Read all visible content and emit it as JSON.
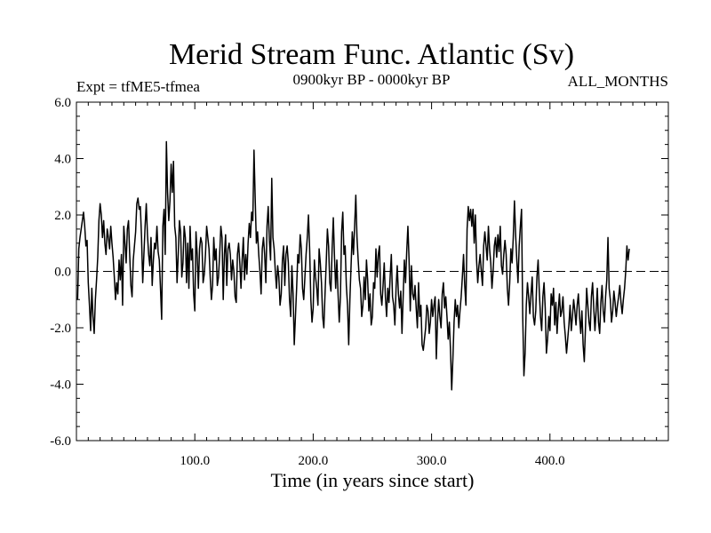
{
  "chart_data": {
    "type": "line",
    "title": "Merid Stream Func. Atlantic (Sv)",
    "subtitle_left": "Expt = tfME5-tfmea",
    "subtitle_center": "0900kyr BP - 0000kyr BP",
    "subtitle_right": "ALL_MONTHS",
    "xlabel": "Time (in years since start)",
    "ylabel": "",
    "xlim": [
      0,
      500
    ],
    "ylim": [
      -6.0,
      6.0
    ],
    "xticks": [
      100,
      200,
      300,
      400
    ],
    "xtick_labels": [
      "100.0",
      "200.0",
      "300.0",
      "400.0"
    ],
    "yticks": [
      -6,
      -4,
      -2,
      0,
      2,
      4,
      6
    ],
    "ytick_labels": [
      "-6.0",
      "-4.0",
      "-2.0",
      "0.0",
      "2.0",
      "4.0",
      "6.0"
    ],
    "reference_line_y": 0.0,
    "series": [
      {
        "name": "Merid Stream Func. Atlantic",
        "color": "#000000",
        "x_start": 1,
        "x_step": 1,
        "values": [
          -1.0,
          0.8,
          1.2,
          1.5,
          1.8,
          2.1,
          1.6,
          0.9,
          1.1,
          -0.4,
          -1.2,
          -2.1,
          -0.6,
          -1.6,
          -2.2,
          -1.0,
          -0.3,
          0.5,
          1.8,
          2.4,
          2.0,
          1.2,
          1.8,
          1.0,
          0.6,
          1.5,
          1.2,
          0.8,
          1.6,
          1.0,
          0.5,
          -0.2,
          -1.0,
          -0.4,
          -0.8,
          0.4,
          -0.3,
          0.6,
          -1.2,
          1.6,
          1.0,
          0.3,
          1.5,
          1.8,
          0.6,
          -0.5,
          -0.9,
          0.4,
          0.9,
          1.4,
          2.4,
          2.6,
          2.2,
          2.3,
          1.2,
          -0.4,
          0.6,
          1.6,
          2.4,
          1.3,
          0.6,
          0.2,
          1.2,
          -0.5,
          0.4,
          1.0,
          0.8,
          1.6,
          0.7,
          0.4,
          -0.6,
          -1.7,
          1.6,
          2.2,
          0.6,
          4.6,
          2.8,
          1.8,
          2.5,
          3.8,
          2.8,
          3.9,
          1.6,
          1.2,
          -0.4,
          0.6,
          1.8,
          1.4,
          -0.2,
          0.3,
          1.6,
          1.2,
          -0.4,
          1.0,
          -0.6,
          1.6,
          0.4,
          0.8,
          -0.8,
          -1.4,
          1.4,
          0.6,
          -0.6,
          0.8,
          1.2,
          1.0,
          -0.4,
          -0.1,
          0.6,
          1.6,
          1.2,
          0.8,
          -0.2,
          -1.0,
          -0.5,
          1.2,
          0.4,
          0.8,
          -0.5,
          -0.2,
          0.6,
          1.6,
          1.2,
          -1.0,
          0.6,
          1.3,
          -0.5,
          0.8,
          1.0,
          0.6,
          -0.3,
          0.4,
          0.0,
          -0.9,
          -1.1,
          0.6,
          1.0,
          0.3,
          -0.6,
          0.4,
          1.2,
          -0.3,
          0.6,
          -0.1,
          1.0,
          1.7,
          1.2,
          2.1,
          1.8,
          4.3,
          2.6,
          1.0,
          1.4,
          0.6,
          0.0,
          -0.8,
          0.8,
          1.2,
          0.6,
          -0.4,
          1.6,
          2.3,
          1.1,
          0.4,
          3.3,
          1.2,
          0.8,
          0.0,
          -0.6,
          0.2,
          -0.2,
          -1.2,
          -0.8,
          0.4,
          0.9,
          -0.5,
          0.6,
          0.9,
          0.3,
          -1.0,
          -1.6,
          0.2,
          -0.8,
          -2.6,
          -1.6,
          -0.6,
          0.6,
          0.3,
          1.3,
          0.8,
          -0.6,
          -1.0,
          -0.2,
          0.6,
          1.2,
          2.0,
          0.8,
          -1.0,
          -1.8,
          -1.3,
          0.4,
          -0.2,
          -0.6,
          -1.2,
          0.8,
          0.3,
          -0.4,
          -1.6,
          -2.0,
          -0.8,
          0.3,
          1.5,
          0.9,
          -0.4,
          -0.7,
          0.8,
          1.9,
          0.5,
          -0.6,
          0.4,
          -0.8,
          -1.8,
          -0.9,
          1.4,
          2.1,
          0.6,
          0.9,
          -0.5,
          -1.2,
          -2.6,
          -1.0,
          0.2,
          1.4,
          0.6,
          1.6,
          2.7,
          1.2,
          0.4,
          -0.3,
          -0.6,
          -1.6,
          -1.2,
          -0.2,
          -1.0,
          0.4,
          -0.3,
          -1.4,
          -0.8,
          -1.9,
          -1.6,
          -0.4,
          -0.6,
          0.8,
          -0.2,
          0.6,
          0.9,
          -0.8,
          -1.2,
          -0.5,
          0.3,
          -0.9,
          -1.6,
          -0.6,
          -1.1,
          -0.2,
          0.6,
          -0.9,
          -1.2,
          -1.9,
          -0.6,
          0.2,
          -0.8,
          -1.3,
          -0.7,
          -2.2,
          -0.9,
          0.4,
          -0.4,
          0.7,
          1.6,
          0.4,
          -1.4,
          0.2,
          -0.8,
          -1.0,
          -0.5,
          -1.3,
          -2.0,
          -0.4,
          -1.6,
          -1.2,
          -2.6,
          -2.8,
          -2.4,
          -2.0,
          -1.2,
          -1.4,
          -2.2,
          -1.8,
          -1.0,
          -1.6,
          -1.2,
          -0.9,
          -3.1,
          -1.8,
          -1.0,
          -1.6,
          -2.0,
          -0.8,
          -0.4,
          -1.3,
          -0.9,
          -1.6,
          -2.4,
          -1.8,
          -2.8,
          -4.2,
          -3.1,
          -1.8,
          -1.0,
          -1.6,
          -1.2,
          -2.0,
          -1.4,
          -0.9,
          -0.2,
          0.6,
          -0.5,
          -1.2,
          1.5,
          2.3,
          1.8,
          2.2,
          1.6,
          2.2,
          1.0,
          2.0,
          0.4,
          -0.4,
          0.2,
          0.6,
          0.0,
          -0.5,
          0.9,
          1.4,
          0.9,
          0.4,
          1.6,
          0.8,
          0.3,
          -0.6,
          0.0,
          0.9,
          1.2,
          0.5,
          1.3,
          0.7,
          1.6,
          0.2,
          -0.1,
          0.6,
          1.1,
          0.6,
          -0.6,
          -1.2,
          -0.4,
          0.8,
          0.3,
          1.2,
          2.5,
          1.3,
          0.4,
          -0.4,
          0.9,
          1.6,
          2.2,
          -1.6,
          -3.7,
          -2.9,
          -1.2,
          -0.4,
          -0.9,
          -1.5,
          -0.8,
          -0.2,
          -1.6,
          -1.9,
          -1.4,
          -0.2,
          0.4,
          -0.7,
          -1.6,
          -2.1,
          -0.9,
          -0.4,
          -1.3,
          -2.9,
          -2.4,
          -1.6,
          -2.1,
          -0.8,
          -1.2,
          -0.6,
          -1.9,
          -1.1,
          -2.2,
          -1.4,
          -0.8,
          -1.6,
          -1.4,
          -0.9,
          -1.8,
          -2.3,
          -2.9,
          -2.4,
          -1.9,
          -1.2,
          -2.1,
          -1.6,
          -1.0,
          -1.4,
          -1.9,
          -1.2,
          -0.8,
          -1.6,
          -2.2,
          -1.4,
          -2.6,
          -3.2,
          -2.0,
          -0.6,
          -1.2,
          -1.8,
          -2.1,
          -0.9,
          -0.4,
          -1.3,
          -2.1,
          -1.4,
          -0.6,
          -1.8,
          -2.2,
          -1.1,
          -0.5,
          -1.4,
          -1.8,
          -0.9,
          -0.3,
          1.2,
          -0.6,
          -1.0,
          -1.8,
          -1.4,
          -0.7,
          -1.1,
          -1.6,
          -1.2,
          -0.9,
          -0.5,
          -1.1,
          -1.5,
          -1.0,
          -0.6,
          0.0,
          0.9,
          0.4,
          0.8
        ]
      }
    ]
  }
}
